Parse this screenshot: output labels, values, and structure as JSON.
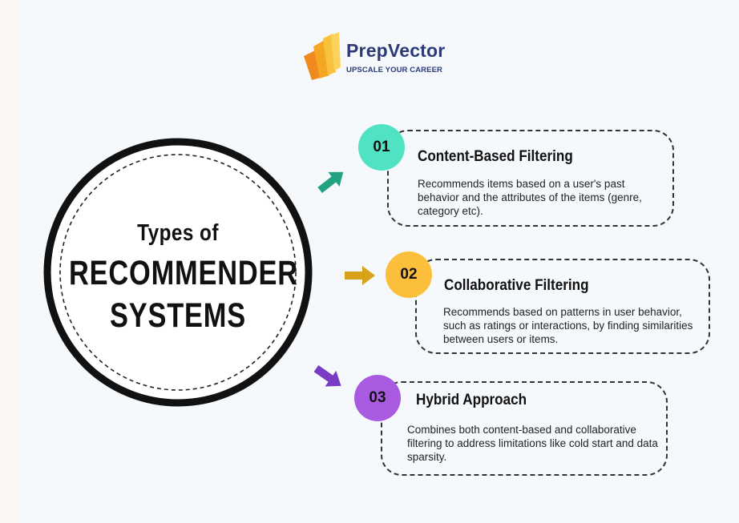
{
  "brand": {
    "name": "PrepVector",
    "tagline": "UPSCALE YOUR CAREER",
    "colors": {
      "primary": "#2d3a78",
      "mark_light": "#f9c23c",
      "mark_dark": "#f08a1e"
    }
  },
  "center": {
    "line1": "Types of",
    "line2": "RECOMMENDER",
    "line3": "SYSTEMS"
  },
  "items": [
    {
      "number": "01",
      "title": "Content-Based Filtering",
      "description": "Recommends items based on a user's past behavior and the attributes of the items (genre, category etc).",
      "color": "#4fe3c4",
      "arrow_color": "#1fa383"
    },
    {
      "number": "02",
      "title": "Collaborative Filtering",
      "description": "Recommends based on patterns in user behavior, such as ratings or interactions, by finding similarities between users or items.",
      "color": "#fbbf3c",
      "arrow_color": "#d9a21a"
    },
    {
      "number": "03",
      "title": "Hybrid Approach",
      "description": "Combines both content-based and collaborative filtering to address limitations like cold start and data sparsity.",
      "color": "#a85be0",
      "arrow_color": "#7a3cc4"
    }
  ]
}
